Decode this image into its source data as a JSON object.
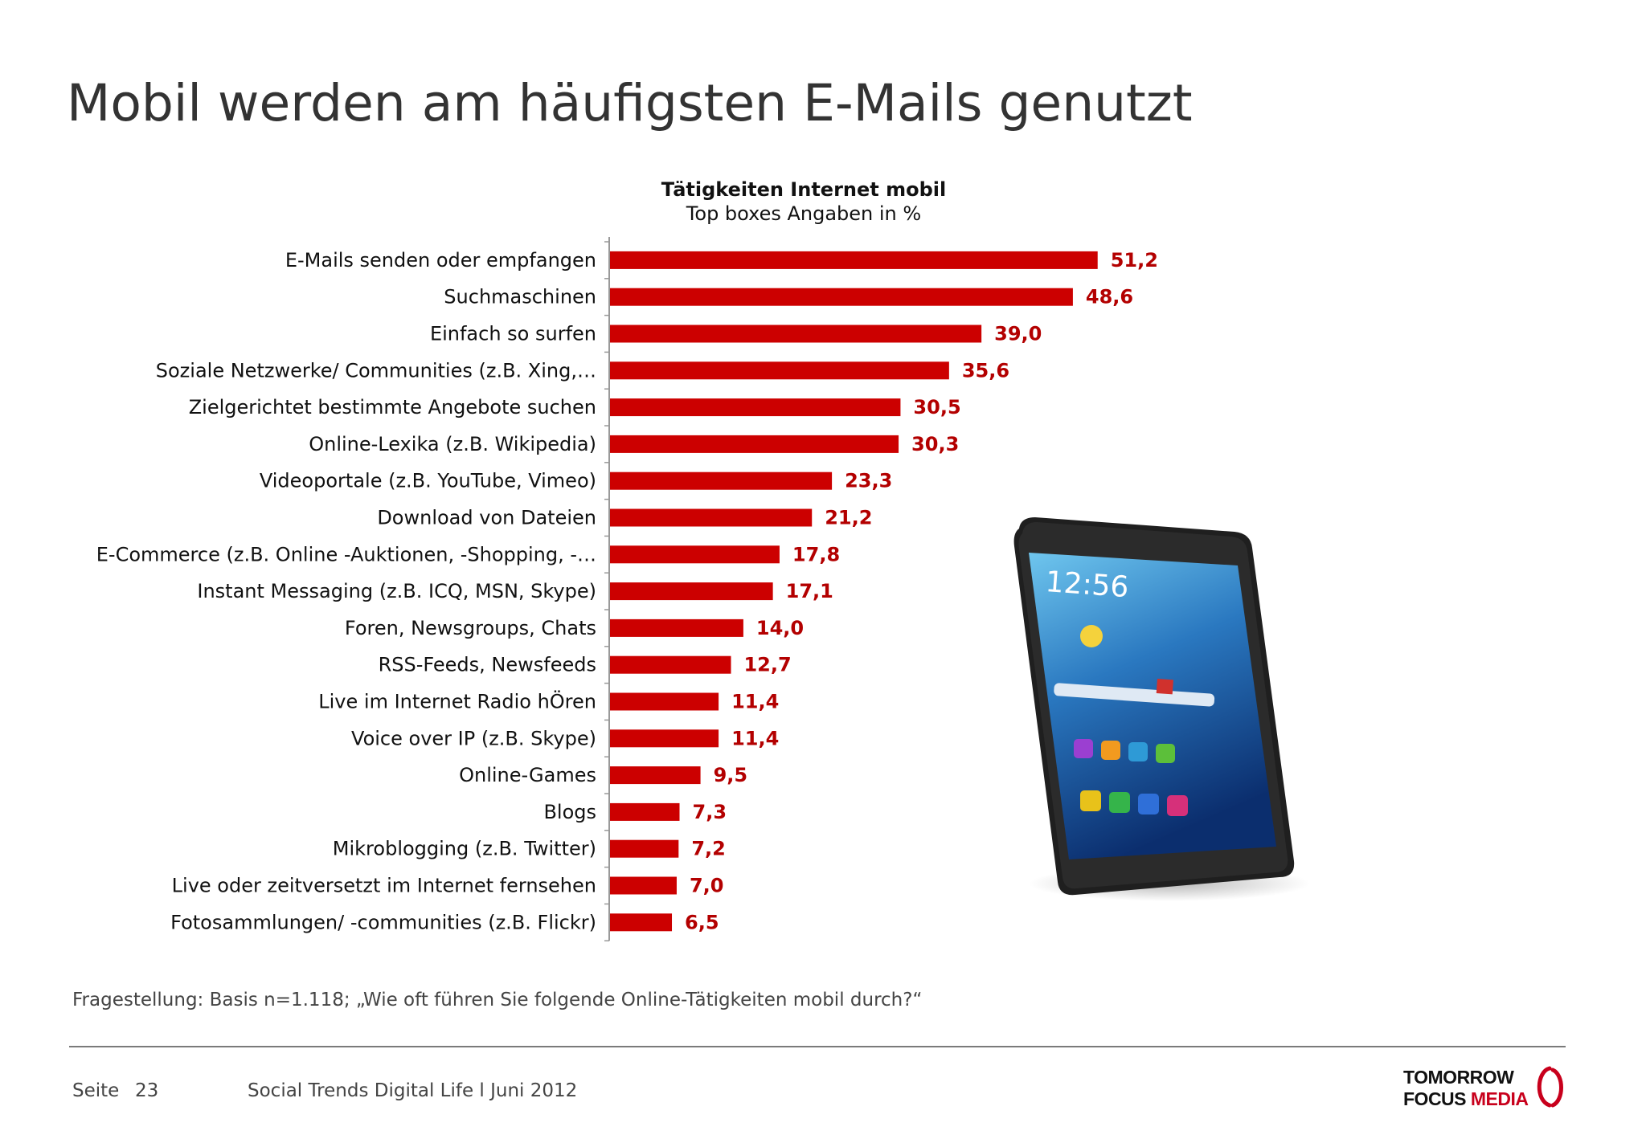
{
  "slide": {
    "title": "Mobil werden am häufigsten E-Mails genutzt",
    "question": "Fragestellung: Basis n=1.118; „Wie oft führen Sie folgende Online-Tätigkeiten mobil durch?“",
    "footer": {
      "page_label": "Seite",
      "page_number": "23",
      "text": "Social Trends Digital Life l Juni 2012"
    },
    "logo": {
      "line1": "TOMORROW",
      "line2_a": "FOCUS",
      "line2_b": "MEDIA"
    }
  },
  "colors": {
    "bar": "#cc0000",
    "value_label": "#b30000",
    "axis": "#999999"
  },
  "phone": {
    "time": "12:56"
  },
  "chart_data": {
    "type": "bar",
    "orientation": "horizontal",
    "title": "Tätigkeiten Internet mobil",
    "subtitle": "Top boxes Angaben in %",
    "categories": [
      "E-Mails senden oder empfangen",
      "Suchmaschinen",
      "Einfach so surfen",
      "Soziale Netzwerke/ Communities (z.B. Xing,…",
      "Zielgerichtet bestimmte Angebote suchen",
      "Online-Lexika (z.B. Wikipedia)",
      "Videoportale (z.B. YouTube, Vimeo)",
      "Download von Dateien",
      "E-Commerce (z.B. Online -Auktionen, -Shopping, -…",
      "Instant Messaging (z.B. ICQ, MSN, Skype)",
      "Foren, Newsgroups, Chats",
      "RSS-Feeds, Newsfeeds",
      "Live im Internet Radio hÖren",
      "Voice over IP (z.B. Skype)",
      "Online-Games",
      "Blogs",
      "Mikroblogging (z.B. Twitter)",
      "Live oder zeitversetzt im Internet fernsehen",
      "Fotosammlungen/ -communities (z.B. Flickr)"
    ],
    "values": [
      51.2,
      48.6,
      39.0,
      35.6,
      30.5,
      30.3,
      23.3,
      21.2,
      17.8,
      17.1,
      14.0,
      12.7,
      11.4,
      11.4,
      9.5,
      7.3,
      7.2,
      7.0,
      6.5
    ],
    "value_labels": [
      "51,2",
      "48,6",
      "39,0",
      "35,6",
      "30,5",
      "30,3",
      "23,3",
      "21,2",
      "17,8",
      "17,1",
      "14,0",
      "12,7",
      "11,4",
      "11,4",
      "9,5",
      "7,3",
      "7,2",
      "7,0",
      "6,5"
    ],
    "xlim": [
      0,
      60
    ],
    "grid": false,
    "legend": "none"
  }
}
